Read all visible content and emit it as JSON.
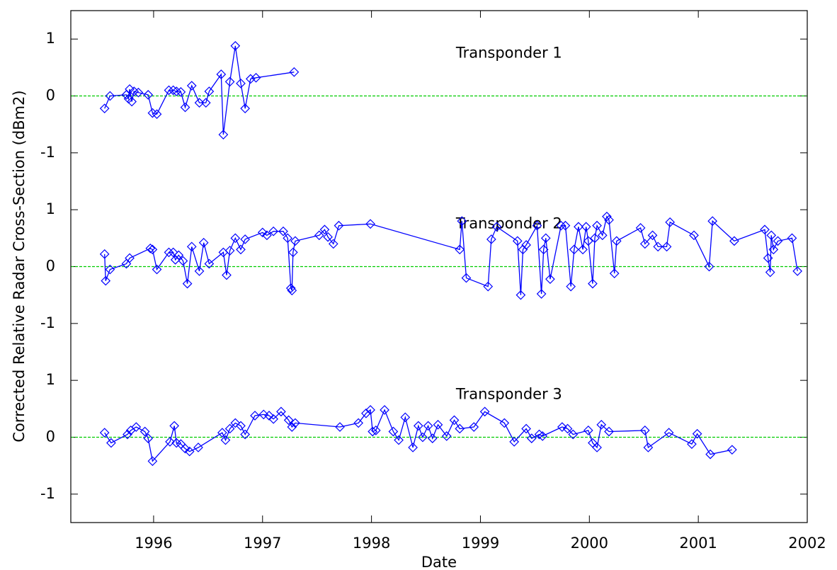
{
  "chart_data": {
    "type": "line",
    "xlabel": "Date",
    "ylabel": "Corrected Relative Radar Cross-Section (dBm2)",
    "xlim": [
      1995.24,
      2002.0
    ],
    "xticks": [
      1996,
      1997,
      1998,
      1999,
      2000,
      2001,
      2002
    ],
    "color": "#0000ff",
    "zero_line_color": "#00cc00",
    "zero_line": true,
    "marker": "diamond",
    "panels": [
      {
        "name": "Transponder 1",
        "ylim": [
          -1.5,
          1.5
        ],
        "yticks": [
          -1,
          0,
          1
        ],
        "x": [
          1995.55,
          1995.6,
          1995.75,
          1995.77,
          1995.78,
          1995.8,
          1995.82,
          1995.86,
          1995.95,
          1995.99,
          1996.03,
          1996.14,
          1996.18,
          1996.21,
          1996.25,
          1996.29,
          1996.35,
          1996.42,
          1996.48,
          1996.51,
          1996.62,
          1996.64,
          1996.7,
          1996.75,
          1996.8,
          1996.84,
          1996.89,
          1996.94,
          1997.29
        ],
        "values": [
          -0.22,
          0.0,
          0.02,
          -0.05,
          0.12,
          -0.1,
          0.08,
          0.06,
          0.02,
          -0.3,
          -0.32,
          0.1,
          0.1,
          0.08,
          0.07,
          -0.2,
          0.18,
          -0.12,
          -0.12,
          0.08,
          0.38,
          -0.68,
          0.25,
          0.88,
          0.22,
          -0.22,
          0.3,
          0.32,
          0.42
        ]
      },
      {
        "name": "Transponder 2",
        "ylim": [
          -1.5,
          1.5
        ],
        "yticks": [
          -1,
          0,
          1
        ],
        "x": [
          1995.55,
          1995.56,
          1995.6,
          1995.75,
          1995.78,
          1995.97,
          1995.99,
          1996.03,
          1996.14,
          1996.18,
          1996.2,
          1996.23,
          1996.27,
          1996.31,
          1996.35,
          1996.42,
          1996.46,
          1996.51,
          1996.64,
          1996.67,
          1996.7,
          1996.75,
          1996.8,
          1996.84,
          1997.0,
          1997.04,
          1997.1,
          1997.19,
          1997.23,
          1997.26,
          1997.27,
          1997.28,
          1997.3,
          1997.52,
          1997.57,
          1997.6,
          1997.65,
          1997.7,
          1997.99,
          1998.81,
          1998.83,
          1998.87,
          1999.07,
          1999.1,
          1999.15,
          1999.34,
          1999.37,
          1999.39,
          1999.42,
          1999.52,
          1999.56,
          1999.58,
          1999.6,
          1999.64,
          1999.74,
          1999.78,
          1999.83,
          1999.86,
          1999.9,
          1999.94,
          1999.97,
          1999.99,
          2000.03,
          2000.05,
          2000.07,
          2000.12,
          2000.16,
          2000.18,
          2000.23,
          2000.25,
          2000.47,
          2000.51,
          2000.58,
          2000.63,
          2000.71,
          2000.74,
          2000.96,
          2001.1,
          2001.13,
          2001.33,
          2001.61,
          2001.64,
          2001.66,
          2001.67,
          2001.69,
          2001.73,
          2001.86,
          2001.91
        ],
        "values": [
          0.22,
          -0.25,
          -0.05,
          0.05,
          0.15,
          0.32,
          0.3,
          -0.05,
          0.25,
          0.25,
          0.12,
          0.2,
          0.1,
          -0.3,
          0.35,
          -0.08,
          0.42,
          0.05,
          0.25,
          -0.15,
          0.28,
          0.5,
          0.3,
          0.48,
          0.6,
          0.55,
          0.62,
          0.62,
          0.5,
          -0.38,
          -0.42,
          0.25,
          0.45,
          0.55,
          0.65,
          0.52,
          0.4,
          0.72,
          0.75,
          0.3,
          0.8,
          -0.2,
          -0.35,
          0.48,
          0.7,
          0.45,
          -0.5,
          0.3,
          0.38,
          0.72,
          -0.48,
          0.3,
          0.5,
          -0.22,
          0.72,
          0.72,
          -0.35,
          0.3,
          0.7,
          0.3,
          0.7,
          0.45,
          -0.3,
          0.5,
          0.72,
          0.55,
          0.88,
          0.82,
          -0.12,
          0.45,
          0.68,
          0.4,
          0.55,
          0.35,
          0.35,
          0.78,
          0.55,
          0.0,
          0.8,
          0.45,
          0.65,
          0.15,
          -0.1,
          0.55,
          0.3,
          0.45,
          0.5,
          -0.08
        ]
      },
      {
        "name": "Transponder 3",
        "ylim": [
          -1.5,
          1.5
        ],
        "yticks": [
          -1,
          0,
          1
        ],
        "x": [
          1995.55,
          1995.61,
          1995.76,
          1995.79,
          1995.84,
          1995.92,
          1995.95,
          1995.99,
          1996.15,
          1996.19,
          1996.21,
          1996.25,
          1996.29,
          1996.33,
          1996.41,
          1996.63,
          1996.66,
          1996.7,
          1996.75,
          1996.8,
          1996.84,
          1996.93,
          1997.01,
          1997.06,
          1997.1,
          1997.17,
          1997.24,
          1997.27,
          1997.3,
          1997.71,
          1997.88,
          1997.95,
          1997.99,
          1998.01,
          1998.04,
          1998.12,
          1998.2,
          1998.25,
          1998.31,
          1998.38,
          1998.43,
          1998.47,
          1998.52,
          1998.56,
          1998.61,
          1998.69,
          1998.76,
          1998.81,
          1998.94,
          1999.04,
          1999.22,
          1999.31,
          1999.42,
          1999.47,
          1999.54,
          1999.57,
          1999.75,
          1999.8,
          1999.85,
          1999.99,
          2000.03,
          2000.07,
          2000.11,
          2000.18,
          2000.51,
          2000.54,
          2000.73,
          2000.94,
          2000.99,
          2001.11,
          2001.31
        ],
        "values": [
          0.08,
          -0.1,
          0.05,
          0.12,
          0.18,
          0.1,
          -0.02,
          -0.42,
          -0.08,
          0.2,
          -0.1,
          -0.12,
          -0.2,
          -0.25,
          -0.18,
          0.08,
          -0.05,
          0.15,
          0.25,
          0.2,
          0.05,
          0.38,
          0.4,
          0.38,
          0.32,
          0.45,
          0.3,
          0.18,
          0.25,
          0.18,
          0.25,
          0.42,
          0.48,
          0.1,
          0.12,
          0.48,
          0.1,
          -0.05,
          0.35,
          -0.18,
          0.2,
          0.0,
          0.2,
          -0.02,
          0.22,
          0.02,
          0.3,
          0.15,
          0.18,
          0.45,
          0.25,
          -0.08,
          0.15,
          -0.02,
          0.05,
          0.02,
          0.18,
          0.15,
          0.05,
          0.12,
          -0.1,
          -0.18,
          0.22,
          0.1,
          0.12,
          -0.18,
          0.08,
          -0.12,
          0.06,
          -0.3,
          -0.22
        ]
      }
    ]
  }
}
